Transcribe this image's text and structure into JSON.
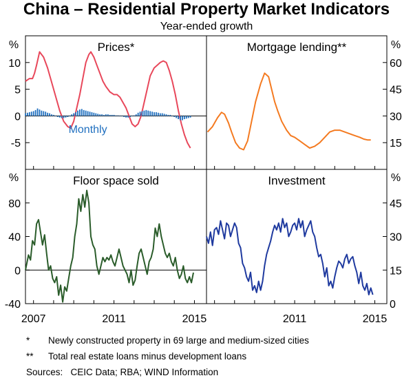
{
  "title": "China – Residential Property Market Indicators",
  "subtitle": "Year-ended growth",
  "notes": [
    {
      "mark": "*",
      "text": "Newly constructed property in 69 large and medium-sized cities"
    },
    {
      "mark": "**",
      "text": "Total real estate loans minus development loans"
    }
  ],
  "sources": "Sources:   CEIC Data; RBA; WIND Information",
  "axis_unit": "%",
  "x_ticks": [
    {
      "label": "2007",
      "value": 2007
    },
    {
      "label": "2011",
      "value": 2011
    },
    {
      "label": "2015",
      "value": 2015
    }
  ],
  "chart_data": [
    {
      "type": "line",
      "title": "Prices*",
      "axis_side": "left",
      "xlim": [
        2006.6,
        2015.6
      ],
      "ylim": [
        -10,
        15
      ],
      "yticks": [
        -5,
        0,
        5,
        10
      ],
      "annotation": "Monthly",
      "colors": {
        "line": "#e8475a",
        "bars": "#1f6fbf"
      },
      "series": [
        {
          "name": "Year-ended",
          "type": "line",
          "x": [
            2006.6,
            2006.8,
            2006.95,
            2007.05,
            2007.15,
            2007.3,
            2007.5,
            2007.7,
            2007.85,
            2008.0,
            2008.15,
            2008.3,
            2008.5,
            2008.7,
            2008.85,
            2009.0,
            2009.15,
            2009.3,
            2009.45,
            2009.6,
            2009.75,
            2009.85,
            2010.0,
            2010.15,
            2010.3,
            2010.45,
            2010.6,
            2010.8,
            2011.0,
            2011.15,
            2011.3,
            2011.45,
            2011.6,
            2011.75,
            2011.9,
            2012.05,
            2012.2,
            2012.35,
            2012.5,
            2012.65,
            2012.8,
            2013.0,
            2013.15,
            2013.3,
            2013.45,
            2013.6,
            2013.75,
            2013.9,
            2014.05,
            2014.2,
            2014.35,
            2014.5,
            2014.65,
            2014.8
          ],
          "y": [
            6.5,
            7,
            7,
            8,
            9.5,
            12,
            11,
            9,
            7,
            5,
            3,
            1,
            -1,
            -2,
            -2.3,
            -1,
            1.5,
            4,
            7,
            10,
            11.5,
            12,
            11,
            9.5,
            8,
            6.5,
            5.5,
            4.5,
            4,
            4,
            3.5,
            2.5,
            1.5,
            0,
            -1.5,
            -2,
            -1.5,
            0,
            2.5,
            5,
            7.5,
            9,
            9.5,
            10,
            10.3,
            10,
            8.5,
            6.5,
            4,
            1,
            -1.5,
            -3.5,
            -5,
            -6
          ]
        },
        {
          "name": "Monthly",
          "type": "bar",
          "x": [
            2006.6,
            2006.7,
            2006.8,
            2006.9,
            2007.0,
            2007.1,
            2007.2,
            2007.3,
            2007.4,
            2007.5,
            2007.6,
            2007.7,
            2007.8,
            2007.9,
            2008.0,
            2008.1,
            2008.2,
            2008.3,
            2008.4,
            2008.5,
            2008.6,
            2008.7,
            2008.8,
            2008.9,
            2009.0,
            2009.1,
            2009.2,
            2009.3,
            2009.4,
            2009.5,
            2009.6,
            2009.7,
            2009.8,
            2009.9,
            2010.0,
            2010.1,
            2010.2,
            2010.3,
            2010.4,
            2010.5,
            2010.6,
            2010.7,
            2010.8,
            2010.9,
            2011.0,
            2011.1,
            2011.2,
            2011.3,
            2011.4,
            2011.5,
            2011.6,
            2011.7,
            2011.8,
            2011.9,
            2012.0,
            2012.1,
            2012.2,
            2012.3,
            2012.4,
            2012.5,
            2012.6,
            2012.7,
            2012.8,
            2012.9,
            2013.0,
            2013.1,
            2013.2,
            2013.3,
            2013.4,
            2013.5,
            2013.6,
            2013.7,
            2013.8,
            2013.9,
            2014.0,
            2014.1,
            2014.2,
            2014.3,
            2014.4,
            2014.5,
            2014.6,
            2014.7,
            2014.8
          ],
          "y": [
            0.5,
            0.6,
            0.7,
            0.8,
            0.9,
            1.1,
            1.4,
            1.2,
            1.0,
            0.9,
            0.8,
            0.6,
            0.5,
            0.3,
            0.2,
            0.0,
            -0.2,
            -0.3,
            -0.4,
            -0.4,
            -0.3,
            -0.2,
            0.0,
            0.3,
            0.5,
            0.7,
            1.0,
            1.2,
            1.3,
            1.1,
            1.0,
            0.9,
            0.8,
            0.7,
            0.6,
            0.5,
            0.4,
            0.3,
            0.3,
            0.2,
            0.3,
            0.3,
            0.2,
            0.2,
            0.2,
            0.1,
            0.1,
            0.0,
            0.0,
            -0.2,
            -0.3,
            -0.3,
            -0.2,
            0.0,
            0.1,
            0.3,
            0.6,
            0.8,
            0.9,
            1.0,
            1.1,
            1.0,
            0.9,
            0.8,
            0.7,
            0.7,
            0.6,
            0.5,
            0.5,
            0.4,
            0.3,
            0.2,
            0.2,
            0.0,
            -0.2,
            -0.4,
            -0.6,
            -0.8,
            -0.8,
            -0.6,
            -0.5,
            -0.4,
            -0.3
          ]
        }
      ]
    },
    {
      "type": "line",
      "title": "Mortgage lending**",
      "axis_side": "right",
      "xlim": [
        2006.6,
        2015.6
      ],
      "ylim": [
        0,
        75
      ],
      "yticks": [
        15,
        30,
        45,
        60
      ],
      "colors": {
        "line": "#f47a20"
      },
      "series": [
        {
          "name": "Mortgage lending",
          "x": [
            2006.65,
            2006.9,
            2007.15,
            2007.35,
            2007.5,
            2007.7,
            2007.85,
            2008.05,
            2008.25,
            2008.45,
            2008.65,
            2008.85,
            2009.05,
            2009.3,
            2009.5,
            2009.7,
            2009.85,
            2010.0,
            2010.15,
            2010.35,
            2010.6,
            2010.8,
            2011.0,
            2011.25,
            2011.5,
            2011.75,
            2012.0,
            2012.25,
            2012.5,
            2012.75,
            2013.0,
            2013.25,
            2013.5,
            2013.75,
            2014.0,
            2014.25,
            2014.45,
            2014.65,
            2014.8
          ],
          "y": [
            21,
            24,
            29,
            32,
            31,
            26,
            21,
            15,
            12,
            11,
            16,
            27,
            38,
            48,
            54,
            52,
            45,
            38,
            33,
            27,
            22,
            19,
            18,
            16,
            14,
            12,
            13,
            15,
            18,
            21,
            22,
            22,
            21,
            20,
            19,
            18,
            17,
            16.5,
            16.5
          ]
        }
      ]
    },
    {
      "type": "line",
      "title": "Floor space sold",
      "axis_side": "left",
      "xlim": [
        2006.6,
        2015.6
      ],
      "ylim": [
        -40,
        120
      ],
      "yticks": [
        -40,
        0,
        40,
        80
      ],
      "colors": {
        "line": "#2a5c2a"
      },
      "series": [
        {
          "name": "Floor space sold",
          "x": [
            2006.6,
            2006.75,
            2006.85,
            2006.95,
            2007.05,
            2007.15,
            2007.25,
            2007.35,
            2007.45,
            2007.55,
            2007.65,
            2007.75,
            2007.85,
            2007.95,
            2008.05,
            2008.15,
            2008.25,
            2008.35,
            2008.45,
            2008.55,
            2008.65,
            2008.75,
            2008.85,
            2008.95,
            2009.05,
            2009.15,
            2009.25,
            2009.35,
            2009.45,
            2009.55,
            2009.65,
            2009.75,
            2009.85,
            2009.95,
            2010.05,
            2010.15,
            2010.25,
            2010.35,
            2010.45,
            2010.55,
            2010.65,
            2010.75,
            2010.85,
            2010.95,
            2011.05,
            2011.15,
            2011.25,
            2011.35,
            2011.45,
            2011.55,
            2011.65,
            2011.75,
            2011.85,
            2011.95,
            2012.05,
            2012.15,
            2012.25,
            2012.35,
            2012.45,
            2012.55,
            2012.65,
            2012.75,
            2012.85,
            2012.95,
            2013.05,
            2013.15,
            2013.25,
            2013.35,
            2013.45,
            2013.55,
            2013.65,
            2013.75,
            2013.85,
            2013.95,
            2014.05,
            2014.15,
            2014.25,
            2014.35,
            2014.45,
            2014.55,
            2014.65,
            2014.75,
            2014.85,
            2014.95
          ],
          "y": [
            0,
            18,
            12,
            35,
            30,
            55,
            60,
            45,
            30,
            42,
            20,
            0,
            5,
            -10,
            -15,
            -8,
            -30,
            -18,
            -38,
            -20,
            -25,
            -10,
            5,
            15,
            40,
            55,
            85,
            70,
            90,
            75,
            95,
            80,
            40,
            30,
            25,
            5,
            -5,
            5,
            15,
            10,
            15,
            12,
            18,
            10,
            5,
            15,
            25,
            15,
            5,
            0,
            -5,
            -15,
            0,
            -18,
            -12,
            5,
            20,
            25,
            15,
            5,
            -5,
            10,
            15,
            25,
            50,
            40,
            55,
            40,
            30,
            20,
            15,
            20,
            10,
            5,
            15,
            0,
            -10,
            -5,
            5,
            -10,
            -15,
            -8,
            -15,
            -3
          ]
        }
      ]
    },
    {
      "type": "line",
      "title": "Investment",
      "axis_side": "right",
      "xlim": [
        2006.6,
        2015.6
      ],
      "ylim": [
        0,
        60
      ],
      "yticks": [
        0,
        15,
        30,
        45
      ],
      "colors": {
        "line": "#1f3a9f"
      },
      "series": [
        {
          "name": "Investment",
          "x": [
            2006.6,
            2006.7,
            2006.8,
            2006.9,
            2007.0,
            2007.1,
            2007.2,
            2007.3,
            2007.4,
            2007.5,
            2007.6,
            2007.7,
            2007.8,
            2007.9,
            2008.0,
            2008.1,
            2008.2,
            2008.3,
            2008.4,
            2008.5,
            2008.6,
            2008.7,
            2008.8,
            2008.9,
            2009.0,
            2009.1,
            2009.2,
            2009.3,
            2009.4,
            2009.5,
            2009.6,
            2009.7,
            2009.8,
            2009.9,
            2010.0,
            2010.1,
            2010.2,
            2010.3,
            2010.4,
            2010.5,
            2010.6,
            2010.7,
            2010.8,
            2010.9,
            2011.0,
            2011.1,
            2011.2,
            2011.3,
            2011.4,
            2011.5,
            2011.6,
            2011.7,
            2011.8,
            2011.9,
            2012.0,
            2012.1,
            2012.2,
            2012.3,
            2012.4,
            2012.5,
            2012.6,
            2012.7,
            2012.8,
            2012.9,
            2013.0,
            2013.1,
            2013.2,
            2013.3,
            2013.4,
            2013.5,
            2013.6,
            2013.7,
            2013.8,
            2013.9,
            2014.0,
            2014.1,
            2014.2,
            2014.3,
            2014.4,
            2014.5,
            2014.6,
            2014.7,
            2014.8,
            2014.9
          ],
          "y": [
            30,
            27,
            32,
            26,
            33,
            34,
            31,
            37,
            33,
            29,
            36,
            35,
            30,
            33,
            36,
            34,
            27,
            25,
            18,
            16,
            12,
            10,
            14,
            6,
            8,
            5,
            10,
            6,
            10,
            17,
            22,
            25,
            28,
            32,
            35,
            33,
            36,
            32,
            38,
            34,
            36,
            30,
            32,
            35,
            36,
            33,
            38,
            34,
            37,
            30,
            33,
            35,
            37,
            32,
            30,
            25,
            21,
            22,
            18,
            12,
            16,
            8,
            10,
            7,
            12,
            16,
            19,
            18,
            16,
            20,
            22,
            18,
            20,
            21,
            17,
            14,
            9,
            14,
            8,
            6,
            9,
            4,
            7,
            4
          ]
        }
      ]
    }
  ]
}
